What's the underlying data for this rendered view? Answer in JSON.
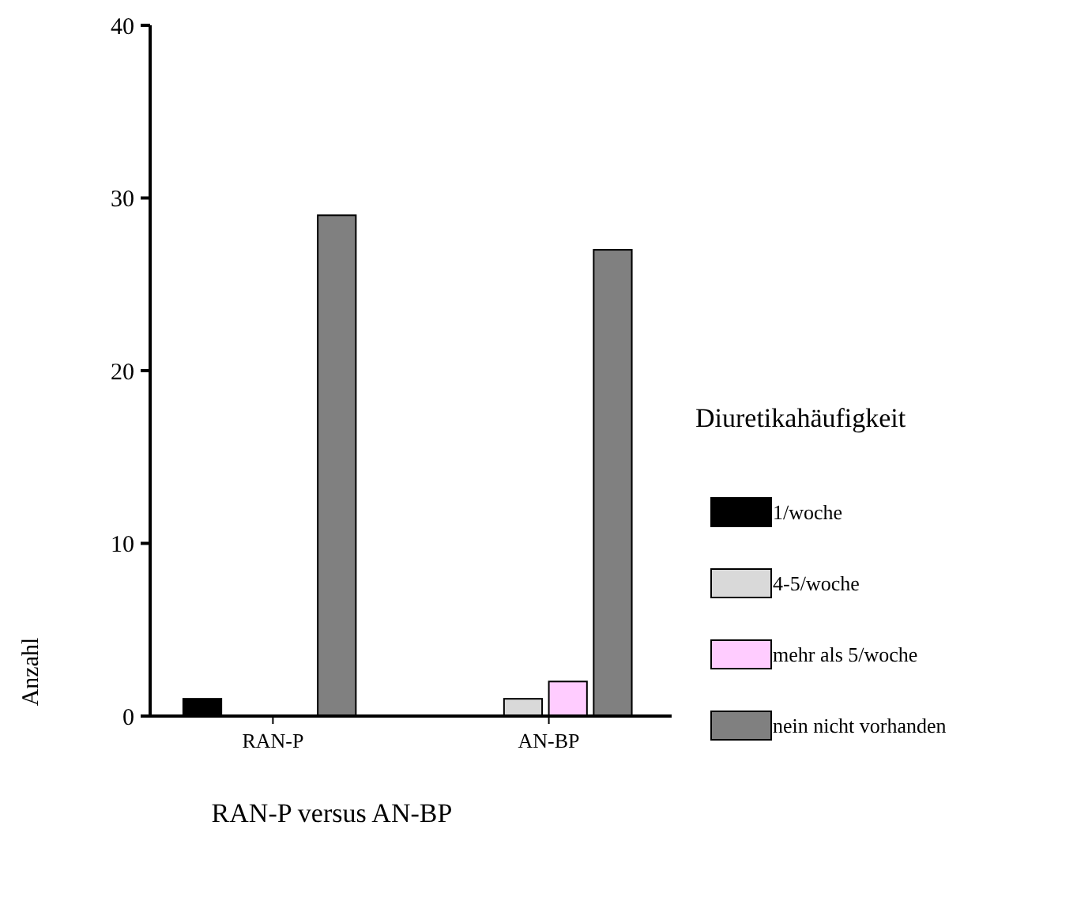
{
  "chart_data": {
    "type": "bar",
    "xlabel": "RAN-P versus AN-BP",
    "ylabel": "Anzahl",
    "legend_title": "Diuretikahäufigkeit",
    "categories": [
      "RAN-P",
      "AN-BP"
    ],
    "series": [
      {
        "name": "1/woche",
        "color": "#000000",
        "values": [
          1,
          0
        ]
      },
      {
        "name": "4-5/woche",
        "color": "#d9d9d9",
        "values": [
          0,
          1
        ]
      },
      {
        "name": "mehr als 5/woche",
        "color": "#ffccff",
        "values": [
          0,
          2
        ]
      },
      {
        "name": "nein nicht vorhanden",
        "color": "#808080",
        "values": [
          29,
          27
        ]
      }
    ],
    "ylim": [
      0,
      40
    ],
    "yticks": [
      0,
      10,
      20,
      30,
      40
    ],
    "grid": false,
    "legend": "right"
  }
}
